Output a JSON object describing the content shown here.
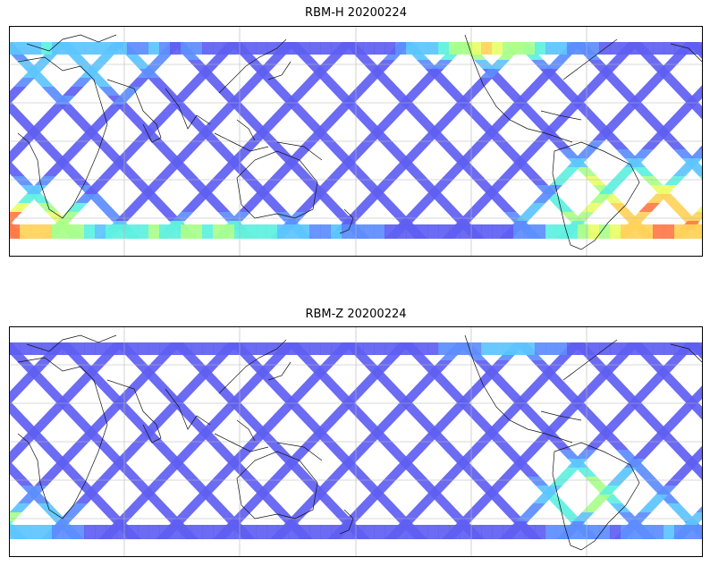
{
  "panels": [
    {
      "id": "top",
      "title": "RBM-H 20200224",
      "band_fill": "0.45 of panel width covered by swaths",
      "colormap": [
        "#5e5ef2",
        "#5c8cff",
        "#5cc4ff",
        "#5ef0e0",
        "#a8ff8c",
        "#e8ff6a",
        "#ffd25a",
        "#ff7a4a"
      ],
      "hotspots": [
        "south-west corner (orange/yellow)",
        "north-central Pacific (yellow-green)",
        "south-east South Atlantic (orange/red)"
      ]
    },
    {
      "id": "bottom",
      "title": "RBM-Z 20200224",
      "colormap": [
        "#5e5ef2",
        "#5c8cff",
        "#5cc4ff",
        "#5ef0e0",
        "#a8ff8c",
        "#e8ff6a"
      ],
      "hotspots": [
        "south-west corner (cyan/green)",
        "southern South America (yellow-green)"
      ]
    }
  ],
  "map": {
    "projection": "plate-carree",
    "gridlines": "on",
    "coastlines": "on"
  }
}
